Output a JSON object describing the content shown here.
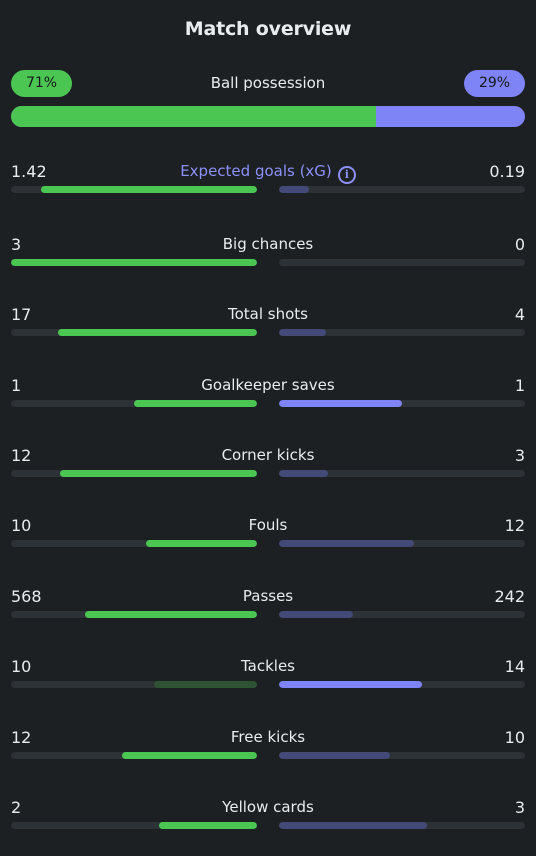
{
  "title": "Match overview",
  "possession": {
    "label": "Ball possession",
    "home_text": "71%",
    "away_text": "29%",
    "home_fraction": 0.71
  },
  "colors": {
    "home_win": "#4cc653",
    "home_lose": "#2e5334",
    "away_win": "#7e83f6",
    "away_lose": "#434a78",
    "track": "#2c3236",
    "xg_label": "#8c90f8"
  },
  "stats": [
    {
      "label": "Expected goals (xG)",
      "home": "1.42",
      "away": "0.19",
      "home_fill": 0.88,
      "away_fill": 0.12,
      "home_strong": true,
      "away_strong": false,
      "info_icon": true
    },
    {
      "label": "Big chances",
      "home": "3",
      "away": "0",
      "home_fill": 1.0,
      "away_fill": 0.0,
      "home_strong": true,
      "away_strong": false
    },
    {
      "label": "Total shots",
      "home": "17",
      "away": "4",
      "home_fill": 0.81,
      "away_fill": 0.19,
      "home_strong": true,
      "away_strong": false
    },
    {
      "label": "Goalkeeper saves",
      "home": "1",
      "away": "1",
      "home_fill": 0.5,
      "away_fill": 0.5,
      "home_strong": true,
      "away_strong": true
    },
    {
      "label": "Corner kicks",
      "home": "12",
      "away": "3",
      "home_fill": 0.8,
      "away_fill": 0.2,
      "home_strong": true,
      "away_strong": false
    },
    {
      "label": "Fouls",
      "home": "10",
      "away": "12",
      "home_fill": 0.45,
      "away_fill": 0.55,
      "home_strong": true,
      "away_strong": false
    },
    {
      "label": "Passes",
      "home": "568",
      "away": "242",
      "home_fill": 0.7,
      "away_fill": 0.3,
      "home_strong": true,
      "away_strong": false
    },
    {
      "label": "Tackles",
      "home": "10",
      "away": "14",
      "home_fill": 0.42,
      "away_fill": 0.58,
      "home_strong": false,
      "away_strong": true
    },
    {
      "label": "Free kicks",
      "home": "12",
      "away": "10",
      "home_fill": 0.55,
      "away_fill": 0.45,
      "home_strong": true,
      "away_strong": false
    },
    {
      "label": "Yellow cards",
      "home": "2",
      "away": "3",
      "home_fill": 0.4,
      "away_fill": 0.6,
      "home_strong": true,
      "away_strong": false
    }
  ]
}
